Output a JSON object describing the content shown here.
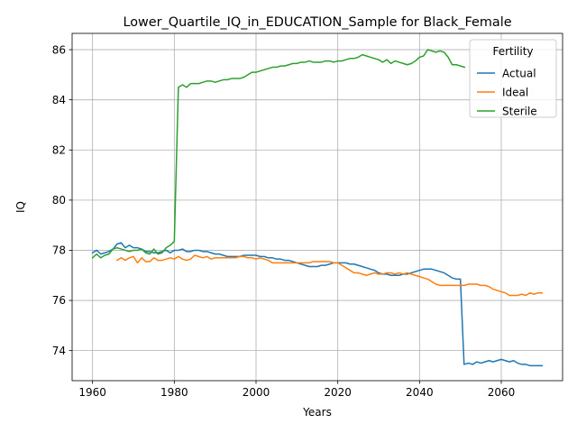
{
  "chart_data": {
    "type": "line",
    "title": "Lower_Quartile_IQ_in_EDUCATION_Sample for Black_Female",
    "xlabel": "Years",
    "ylabel": "IQ",
    "xlim": [
      1955,
      2075
    ],
    "ylim": [
      72.8,
      86.65
    ],
    "xticks": [
      1960,
      1980,
      2000,
      2020,
      2040,
      2060
    ],
    "yticks": [
      74,
      76,
      78,
      80,
      82,
      84,
      86
    ],
    "grid": true,
    "legend": {
      "title": "Fertility",
      "placement": "top-right"
    },
    "series": [
      {
        "name": "Actual",
        "color": "#1f77b4",
        "points": [
          [
            1960,
            77.9
          ],
          [
            1961,
            78.0
          ],
          [
            1962,
            77.85
          ],
          [
            1963,
            77.9
          ],
          [
            1964,
            77.95
          ],
          [
            1965,
            78.05
          ],
          [
            1966,
            78.25
          ],
          [
            1967,
            78.3
          ],
          [
            1968,
            78.1
          ],
          [
            1969,
            78.2
          ],
          [
            1970,
            78.1
          ],
          [
            1971,
            78.1
          ],
          [
            1972,
            78.05
          ],
          [
            1973,
            77.95
          ],
          [
            1974,
            77.95
          ],
          [
            1975,
            77.9
          ],
          [
            1976,
            77.9
          ],
          [
            1977,
            77.95
          ],
          [
            1978,
            78.0
          ],
          [
            1979,
            77.9
          ],
          [
            1980,
            78.0
          ],
          [
            1981,
            78.0
          ],
          [
            1982,
            78.05
          ],
          [
            1983,
            77.95
          ],
          [
            1984,
            77.95
          ],
          [
            1985,
            78.0
          ],
          [
            1986,
            78.0
          ],
          [
            1987,
            77.95
          ],
          [
            1988,
            77.95
          ],
          [
            1989,
            77.9
          ],
          [
            1990,
            77.85
          ],
          [
            1991,
            77.85
          ],
          [
            1992,
            77.8
          ],
          [
            1993,
            77.75
          ],
          [
            1994,
            77.75
          ],
          [
            1995,
            77.75
          ],
          [
            1996,
            77.75
          ],
          [
            1997,
            77.8
          ],
          [
            1998,
            77.8
          ],
          [
            1999,
            77.8
          ],
          [
            2000,
            77.8
          ],
          [
            2001,
            77.75
          ],
          [
            2002,
            77.75
          ],
          [
            2003,
            77.7
          ],
          [
            2004,
            77.7
          ],
          [
            2005,
            77.65
          ],
          [
            2006,
            77.65
          ],
          [
            2007,
            77.6
          ],
          [
            2008,
            77.6
          ],
          [
            2009,
            77.55
          ],
          [
            2010,
            77.5
          ],
          [
            2011,
            77.45
          ],
          [
            2012,
            77.4
          ],
          [
            2013,
            77.35
          ],
          [
            2014,
            77.35
          ],
          [
            2015,
            77.35
          ],
          [
            2016,
            77.4
          ],
          [
            2017,
            77.4
          ],
          [
            2018,
            77.45
          ],
          [
            2019,
            77.5
          ],
          [
            2020,
            77.5
          ],
          [
            2021,
            77.5
          ],
          [
            2022,
            77.5
          ],
          [
            2023,
            77.45
          ],
          [
            2024,
            77.45
          ],
          [
            2025,
            77.4
          ],
          [
            2026,
            77.35
          ],
          [
            2027,
            77.3
          ],
          [
            2028,
            77.25
          ],
          [
            2029,
            77.2
          ],
          [
            2030,
            77.1
          ],
          [
            2031,
            77.05
          ],
          [
            2032,
            77.05
          ],
          [
            2033,
            77.0
          ],
          [
            2034,
            77.0
          ],
          [
            2035,
            77.0
          ],
          [
            2036,
            77.05
          ],
          [
            2037,
            77.05
          ],
          [
            2038,
            77.1
          ],
          [
            2039,
            77.15
          ],
          [
            2040,
            77.2
          ],
          [
            2041,
            77.25
          ],
          [
            2042,
            77.25
          ],
          [
            2043,
            77.25
          ],
          [
            2044,
            77.2
          ],
          [
            2045,
            77.15
          ],
          [
            2046,
            77.1
          ],
          [
            2047,
            77.0
          ],
          [
            2048,
            76.9
          ],
          [
            2049,
            76.85
          ],
          [
            2050,
            76.85
          ],
          [
            2050.9,
            73.45
          ],
          [
            2052,
            73.5
          ],
          [
            2053,
            73.45
          ],
          [
            2054,
            73.55
          ],
          [
            2055,
            73.5
          ],
          [
            2056,
            73.55
          ],
          [
            2057,
            73.6
          ],
          [
            2058,
            73.55
          ],
          [
            2059,
            73.6
          ],
          [
            2060,
            73.65
          ],
          [
            2061,
            73.6
          ],
          [
            2062,
            73.55
          ],
          [
            2063,
            73.6
          ],
          [
            2064,
            73.5
          ],
          [
            2065,
            73.45
          ],
          [
            2066,
            73.45
          ],
          [
            2067,
            73.4
          ],
          [
            2068,
            73.4
          ],
          [
            2069,
            73.4
          ],
          [
            2070,
            73.4
          ]
        ]
      },
      {
        "name": "Ideal",
        "color": "#ff7f0e",
        "points": [
          [
            1966,
            77.6
          ],
          [
            1967,
            77.7
          ],
          [
            1968,
            77.6
          ],
          [
            1969,
            77.7
          ],
          [
            1970,
            77.75
          ],
          [
            1971,
            77.5
          ],
          [
            1972,
            77.7
          ],
          [
            1973,
            77.55
          ],
          [
            1974,
            77.55
          ],
          [
            1975,
            77.7
          ],
          [
            1976,
            77.6
          ],
          [
            1977,
            77.6
          ],
          [
            1978,
            77.65
          ],
          [
            1979,
            77.7
          ],
          [
            1980,
            77.65
          ],
          [
            1981,
            77.75
          ],
          [
            1982,
            77.65
          ],
          [
            1983,
            77.6
          ],
          [
            1984,
            77.65
          ],
          [
            1985,
            77.8
          ],
          [
            1986,
            77.75
          ],
          [
            1987,
            77.7
          ],
          [
            1988,
            77.75
          ],
          [
            1989,
            77.65
          ],
          [
            1990,
            77.7
          ],
          [
            1991,
            77.7
          ],
          [
            1992,
            77.7
          ],
          [
            1993,
            77.7
          ],
          [
            1994,
            77.7
          ],
          [
            1995,
            77.7
          ],
          [
            1996,
            77.75
          ],
          [
            1997,
            77.75
          ],
          [
            1998,
            77.7
          ],
          [
            1999,
            77.7
          ],
          [
            2000,
            77.65
          ],
          [
            2001,
            77.7
          ],
          [
            2002,
            77.65
          ],
          [
            2003,
            77.6
          ],
          [
            2004,
            77.5
          ],
          [
            2005,
            77.5
          ],
          [
            2006,
            77.5
          ],
          [
            2007,
            77.5
          ],
          [
            2008,
            77.5
          ],
          [
            2009,
            77.5
          ],
          [
            2010,
            77.5
          ],
          [
            2011,
            77.5
          ],
          [
            2012,
            77.5
          ],
          [
            2013,
            77.5
          ],
          [
            2014,
            77.55
          ],
          [
            2015,
            77.55
          ],
          [
            2016,
            77.55
          ],
          [
            2017,
            77.55
          ],
          [
            2018,
            77.55
          ],
          [
            2019,
            77.5
          ],
          [
            2020,
            77.5
          ],
          [
            2021,
            77.4
          ],
          [
            2022,
            77.3
          ],
          [
            2023,
            77.2
          ],
          [
            2024,
            77.1
          ],
          [
            2025,
            77.1
          ],
          [
            2026,
            77.05
          ],
          [
            2027,
            77.0
          ],
          [
            2028,
            77.05
          ],
          [
            2029,
            77.1
          ],
          [
            2030,
            77.05
          ],
          [
            2031,
            77.05
          ],
          [
            2032,
            77.1
          ],
          [
            2033,
            77.1
          ],
          [
            2034,
            77.05
          ],
          [
            2035,
            77.1
          ],
          [
            2036,
            77.05
          ],
          [
            2037,
            77.1
          ],
          [
            2038,
            77.05
          ],
          [
            2039,
            77.0
          ],
          [
            2040,
            76.95
          ],
          [
            2041,
            76.9
          ],
          [
            2042,
            76.85
          ],
          [
            2043,
            76.75
          ],
          [
            2044,
            76.65
          ],
          [
            2045,
            76.6
          ],
          [
            2046,
            76.6
          ],
          [
            2047,
            76.6
          ],
          [
            2048,
            76.6
          ],
          [
            2049,
            76.6
          ],
          [
            2050,
            76.6
          ],
          [
            2051,
            76.6
          ],
          [
            2052,
            76.65
          ],
          [
            2053,
            76.65
          ],
          [
            2054,
            76.65
          ],
          [
            2055,
            76.6
          ],
          [
            2056,
            76.6
          ],
          [
            2057,
            76.55
          ],
          [
            2058,
            76.45
          ],
          [
            2059,
            76.4
          ],
          [
            2060,
            76.35
          ],
          [
            2061,
            76.3
          ],
          [
            2062,
            76.2
          ],
          [
            2063,
            76.2
          ],
          [
            2064,
            76.2
          ],
          [
            2065,
            76.25
          ],
          [
            2066,
            76.2
          ],
          [
            2067,
            76.3
          ],
          [
            2068,
            76.25
          ],
          [
            2069,
            76.3
          ],
          [
            2070,
            76.3
          ]
        ]
      },
      {
        "name": "Sterile",
        "color": "#2ca02c",
        "points": [
          [
            1960,
            77.7
          ],
          [
            1961,
            77.85
          ],
          [
            1962,
            77.7
          ],
          [
            1963,
            77.8
          ],
          [
            1964,
            77.85
          ],
          [
            1965,
            78.05
          ],
          [
            1966,
            78.1
          ],
          [
            1967,
            78.05
          ],
          [
            1968,
            78.0
          ],
          [
            1969,
            77.95
          ],
          [
            1970,
            78.0
          ],
          [
            1971,
            78.0
          ],
          [
            1972,
            78.05
          ],
          [
            1973,
            77.9
          ],
          [
            1974,
            77.85
          ],
          [
            1975,
            78.05
          ],
          [
            1976,
            77.85
          ],
          [
            1977,
            77.9
          ],
          [
            1978,
            78.1
          ],
          [
            1979,
            78.2
          ],
          [
            1980,
            78.35
          ],
          [
            1981,
            84.5
          ],
          [
            1982,
            84.6
          ],
          [
            1983,
            84.5
          ],
          [
            1984,
            84.65
          ],
          [
            1985,
            84.65
          ],
          [
            1986,
            84.65
          ],
          [
            1987,
            84.7
          ],
          [
            1988,
            84.75
          ],
          [
            1989,
            84.75
          ],
          [
            1990,
            84.7
          ],
          [
            1991,
            84.75
          ],
          [
            1992,
            84.8
          ],
          [
            1993,
            84.8
          ],
          [
            1994,
            84.85
          ],
          [
            1995,
            84.85
          ],
          [
            1996,
            84.85
          ],
          [
            1997,
            84.9
          ],
          [
            1998,
            85.0
          ],
          [
            1999,
            85.1
          ],
          [
            2000,
            85.1
          ],
          [
            2001,
            85.15
          ],
          [
            2002,
            85.2
          ],
          [
            2003,
            85.25
          ],
          [
            2004,
            85.3
          ],
          [
            2005,
            85.3
          ],
          [
            2006,
            85.35
          ],
          [
            2007,
            85.35
          ],
          [
            2008,
            85.4
          ],
          [
            2009,
            85.45
          ],
          [
            2010,
            85.45
          ],
          [
            2011,
            85.5
          ],
          [
            2012,
            85.5
          ],
          [
            2013,
            85.55
          ],
          [
            2014,
            85.5
          ],
          [
            2015,
            85.5
          ],
          [
            2016,
            85.5
          ],
          [
            2017,
            85.55
          ],
          [
            2018,
            85.55
          ],
          [
            2019,
            85.5
          ],
          [
            2020,
            85.55
          ],
          [
            2021,
            85.55
          ],
          [
            2022,
            85.6
          ],
          [
            2023,
            85.65
          ],
          [
            2024,
            85.65
          ],
          [
            2025,
            85.7
          ],
          [
            2026,
            85.8
          ],
          [
            2027,
            85.75
          ],
          [
            2028,
            85.7
          ],
          [
            2029,
            85.65
          ],
          [
            2030,
            85.6
          ],
          [
            2031,
            85.5
          ],
          [
            2032,
            85.6
          ],
          [
            2033,
            85.45
          ],
          [
            2034,
            85.55
          ],
          [
            2035,
            85.5
          ],
          [
            2036,
            85.45
          ],
          [
            2037,
            85.4
          ],
          [
            2038,
            85.45
          ],
          [
            2039,
            85.55
          ],
          [
            2040,
            85.7
          ],
          [
            2041,
            85.75
          ],
          [
            2042,
            86.0
          ],
          [
            2043,
            85.95
          ],
          [
            2044,
            85.9
          ],
          [
            2045,
            85.95
          ],
          [
            2046,
            85.9
          ],
          [
            2047,
            85.7
          ],
          [
            2048,
            85.4
          ],
          [
            2049,
            85.4
          ],
          [
            2050,
            85.35
          ],
          [
            2051,
            85.3
          ]
        ]
      }
    ]
  }
}
